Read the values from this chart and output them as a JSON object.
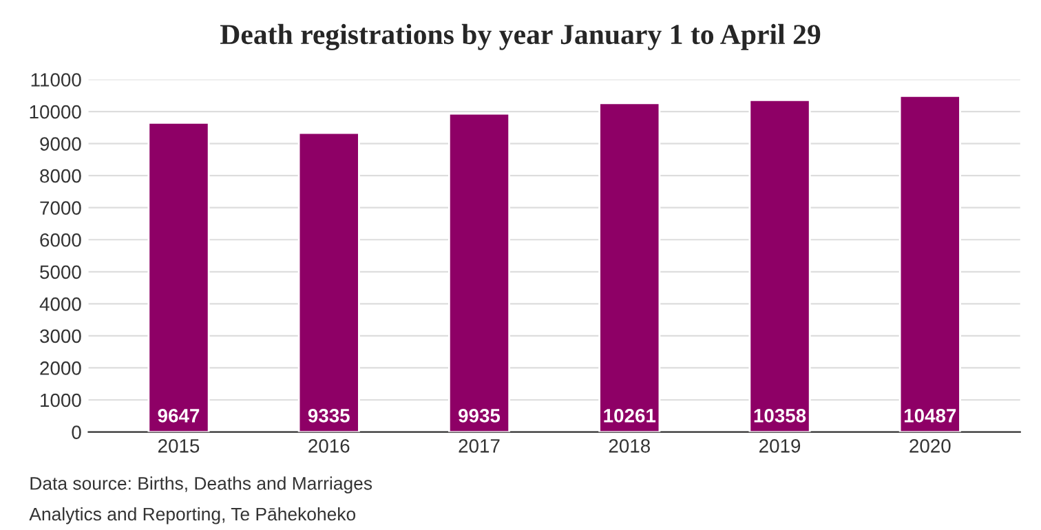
{
  "chart_data": {
    "type": "bar",
    "title": "Death registrations by year January 1 to April 29",
    "categories": [
      "2015",
      "2016",
      "2017",
      "2018",
      "2019",
      "2020"
    ],
    "values": [
      9647,
      9335,
      9935,
      10261,
      10358,
      10487
    ],
    "color": "#8e0066",
    "ylim": [
      0,
      11000
    ],
    "yticks": [
      0,
      1000,
      2000,
      3000,
      4000,
      5000,
      6000,
      7000,
      8000,
      9000,
      10000,
      11000
    ],
    "grid": "y",
    "data_labels": true,
    "annotations": [
      "Data source: Births, Deaths and Marriages",
      "Analytics and Reporting, Te Pāhekoheko"
    ]
  }
}
